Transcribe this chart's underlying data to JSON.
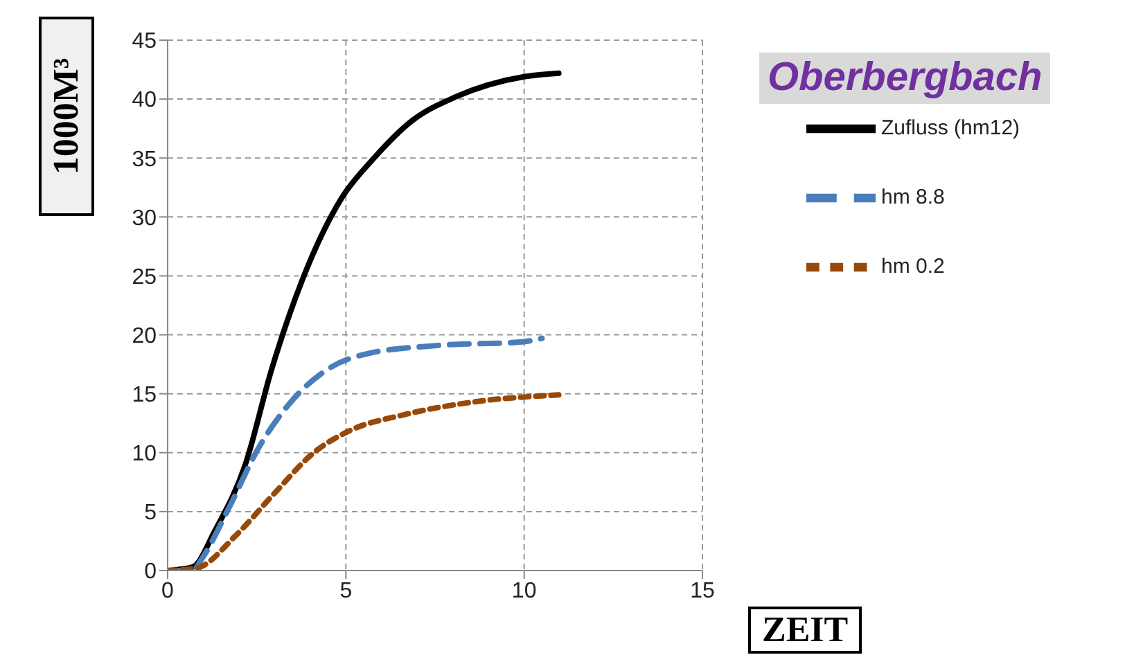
{
  "chart_data": {
    "type": "line",
    "ylabel": "1000M³",
    "xlabel": "ZEIT",
    "annotations": [
      "Oberbergbach"
    ],
    "xlim": [
      0,
      15
    ],
    "xticks": [
      0,
      5,
      10,
      15
    ],
    "ylim": [
      0,
      45
    ],
    "yticks": [
      0,
      5,
      10,
      15,
      20,
      25,
      30,
      35,
      40,
      45
    ],
    "grid": true,
    "legend": "top right",
    "marker": "none",
    "series": [
      {
        "name": "Zufluss (hm12)",
        "color": "#000000",
        "line_style": "solid",
        "x": [
          0,
          0.7,
          1.33,
          2.18,
          2.92,
          3.77,
          4.88,
          5.76,
          6.87,
          8.09,
          10.0,
          10.97
        ],
        "values": [
          0,
          0.3,
          3.4,
          9,
          17.1,
          24.6,
          31.6,
          34.9,
          38.2,
          40.2,
          41.9,
          42.2
        ]
      },
      {
        "name": "hm 8.8",
        "color": "#4a7ebb",
        "line_style": "dashed",
        "x": [
          0,
          0.7,
          0.96,
          1.7,
          2.55,
          3.4,
          4.5,
          5.6,
          7.6,
          9.94,
          10.5
        ],
        "values": [
          0,
          0,
          1,
          5.2,
          10.4,
          14.1,
          17.1,
          18.4,
          19.1,
          19.4,
          19.7
        ]
      },
      {
        "name": "hm 0.2",
        "color": "#984807",
        "line_style": "dotted",
        "x": [
          0,
          0.8,
          1.92,
          2.92,
          4.14,
          5.13,
          6.6,
          8.57,
          10.97
        ],
        "values": [
          0,
          0.2,
          3,
          6.3,
          10.1,
          11.9,
          13.2,
          14.3,
          14.9
        ]
      }
    ]
  }
}
